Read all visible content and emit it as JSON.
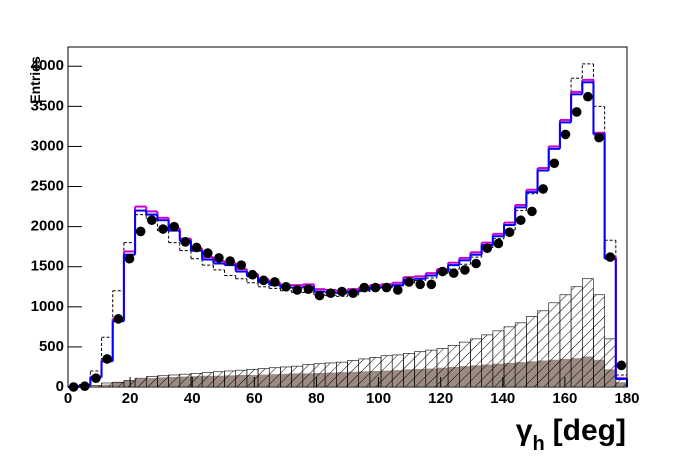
{
  "chart_data": {
    "type": "histogram",
    "y_label": "Entries",
    "x_label_symbol": "γ",
    "x_label_subscript": "h",
    "x_label_unit": "[deg]",
    "bins": [
      0,
      3.6,
      7.2,
      10.8,
      14.4,
      18,
      21.6,
      25.2,
      28.8,
      32.4,
      36,
      39.6,
      43.2,
      46.8,
      50.4,
      54,
      57.6,
      61.2,
      64.8,
      68.4,
      72,
      75.6,
      79.2,
      82.8,
      86.4,
      90,
      93.6,
      97.2,
      100.8,
      104.4,
      108,
      111.6,
      115.2,
      118.8,
      122.4,
      126,
      129.6,
      133.2,
      136.8,
      140.4,
      144,
      147.6,
      151.2,
      154.8,
      158.4,
      162,
      165.6,
      169.2,
      172.8,
      176.4,
      180
    ],
    "xlim": [
      0,
      180
    ],
    "xticks": [
      0,
      20,
      40,
      60,
      80,
      100,
      120,
      140,
      160,
      180
    ],
    "ylim": [
      0,
      4240
    ],
    "yticks": [
      0,
      500,
      1000,
      1500,
      2000,
      2500,
      3000,
      3500,
      4000
    ],
    "series": [
      {
        "style": "filled",
        "color": "#9c8b82",
        "values": [
          0,
          0,
          10,
          30,
          60,
          80,
          100,
          110,
          120,
          125,
          130,
          135,
          140,
          140,
          145,
          150,
          150,
          155,
          160,
          165,
          170,
          170,
          175,
          180,
          185,
          190,
          195,
          200,
          205,
          210,
          220,
          225,
          230,
          240,
          250,
          260,
          270,
          280,
          290,
          300,
          310,
          320,
          330,
          340,
          350,
          360,
          380,
          340,
          220,
          60
        ]
      },
      {
        "style": "hatched",
        "color": "#000000",
        "values": [
          0,
          0,
          20,
          50,
          60,
          80,
          110,
          130,
          140,
          150,
          160,
          170,
          180,
          190,
          200,
          210,
          220,
          230,
          240,
          250,
          260,
          280,
          290,
          300,
          310,
          330,
          350,
          370,
          390,
          400,
          420,
          440,
          460,
          480,
          520,
          560,
          600,
          650,
          700,
          750,
          800,
          880,
          950,
          1050,
          1150,
          1250,
          1350,
          1150,
          600,
          100
        ]
      },
      {
        "style": "dashed",
        "color": "#000000",
        "values": [
          0,
          30,
          200,
          620,
          1200,
          1800,
          2150,
          2100,
          1950,
          1800,
          1700,
          1600,
          1520,
          1460,
          1390,
          1350,
          1300,
          1250,
          1230,
          1200,
          1180,
          1180,
          1150,
          1140,
          1130,
          1150,
          1190,
          1230,
          1240,
          1260,
          1300,
          1330,
          1360,
          1420,
          1470,
          1530,
          1620,
          1740,
          1850,
          1960,
          2200,
          2410,
          2700,
          3000,
          3300,
          3850,
          4030,
          3500,
          1830,
          150
        ]
      },
      {
        "style": "step",
        "color": "#cc00cc",
        "values": [
          0,
          20,
          130,
          340,
          850,
          1690,
          2250,
          2190,
          2110,
          1980,
          1850,
          1730,
          1620,
          1570,
          1550,
          1470,
          1410,
          1340,
          1300,
          1270,
          1270,
          1280,
          1220,
          1210,
          1200,
          1220,
          1240,
          1270,
          1280,
          1300,
          1370,
          1380,
          1420,
          1470,
          1550,
          1610,
          1680,
          1800,
          1910,
          2050,
          2270,
          2460,
          2730,
          3000,
          3330,
          3680,
          3830,
          3170,
          1620,
          110
        ]
      },
      {
        "style": "step",
        "color": "#0000ff",
        "values": [
          0,
          20,
          120,
          320,
          820,
          1650,
          2200,
          2150,
          2080,
          1950,
          1820,
          1700,
          1590,
          1540,
          1520,
          1440,
          1380,
          1310,
          1270,
          1240,
          1240,
          1250,
          1190,
          1180,
          1170,
          1190,
          1210,
          1240,
          1250,
          1270,
          1340,
          1350,
          1390,
          1440,
          1520,
          1580,
          1650,
          1770,
          1880,
          2020,
          2240,
          2430,
          2700,
          2970,
          3300,
          3650,
          3800,
          3150,
          1600,
          100
        ]
      },
      {
        "style": "points",
        "color": "#000000",
        "values": [
          0,
          10,
          110,
          350,
          850,
          1600,
          1940,
          2080,
          1970,
          2000,
          1810,
          1740,
          1670,
          1610,
          1570,
          1520,
          1400,
          1330,
          1310,
          1250,
          1210,
          1220,
          1140,
          1170,
          1190,
          1170,
          1240,
          1240,
          1240,
          1210,
          1310,
          1280,
          1280,
          1440,
          1420,
          1460,
          1540,
          1730,
          1790,
          1930,
          2080,
          2190,
          2470,
          2790,
          3150,
          3430,
          3620,
          3110,
          1620,
          270
        ]
      }
    ]
  }
}
